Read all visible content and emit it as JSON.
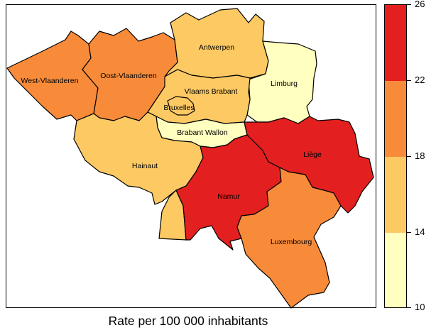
{
  "map": {
    "regions": [
      {
        "id": "west-vlaanderen",
        "name": "West-Vlaanderen",
        "bin": 2
      },
      {
        "id": "oost-vlaanderen",
        "name": "Oost-Vlaanderen",
        "bin": 2
      },
      {
        "id": "antwerpen",
        "name": "Antwerpen",
        "bin": 1
      },
      {
        "id": "limburg",
        "name": "Limburg",
        "bin": 0
      },
      {
        "id": "vlaams-brabant",
        "name": "Vlaams Brabant",
        "bin": 1
      },
      {
        "id": "bruxelles",
        "name": "Bruxelles",
        "bin": 1
      },
      {
        "id": "brabant-wallon",
        "name": "Brabant Wallon",
        "bin": 0
      },
      {
        "id": "hainaut",
        "name": "Hainaut",
        "bin": 1
      },
      {
        "id": "namur",
        "name": "Namur",
        "bin": 3
      },
      {
        "id": "liege",
        "name": "Liège",
        "bin": 3
      },
      {
        "id": "luxembourg",
        "name": "Luxembourg",
        "bin": 2
      }
    ]
  },
  "legend": {
    "breaks": [
      "10",
      "14",
      "18",
      "22",
      "26"
    ],
    "colors": [
      "#FFFFBF",
      "#FDC963",
      "#F88B3A",
      "#E31F1F"
    ]
  },
  "caption": "Rate per 100 000 inhabitants"
}
